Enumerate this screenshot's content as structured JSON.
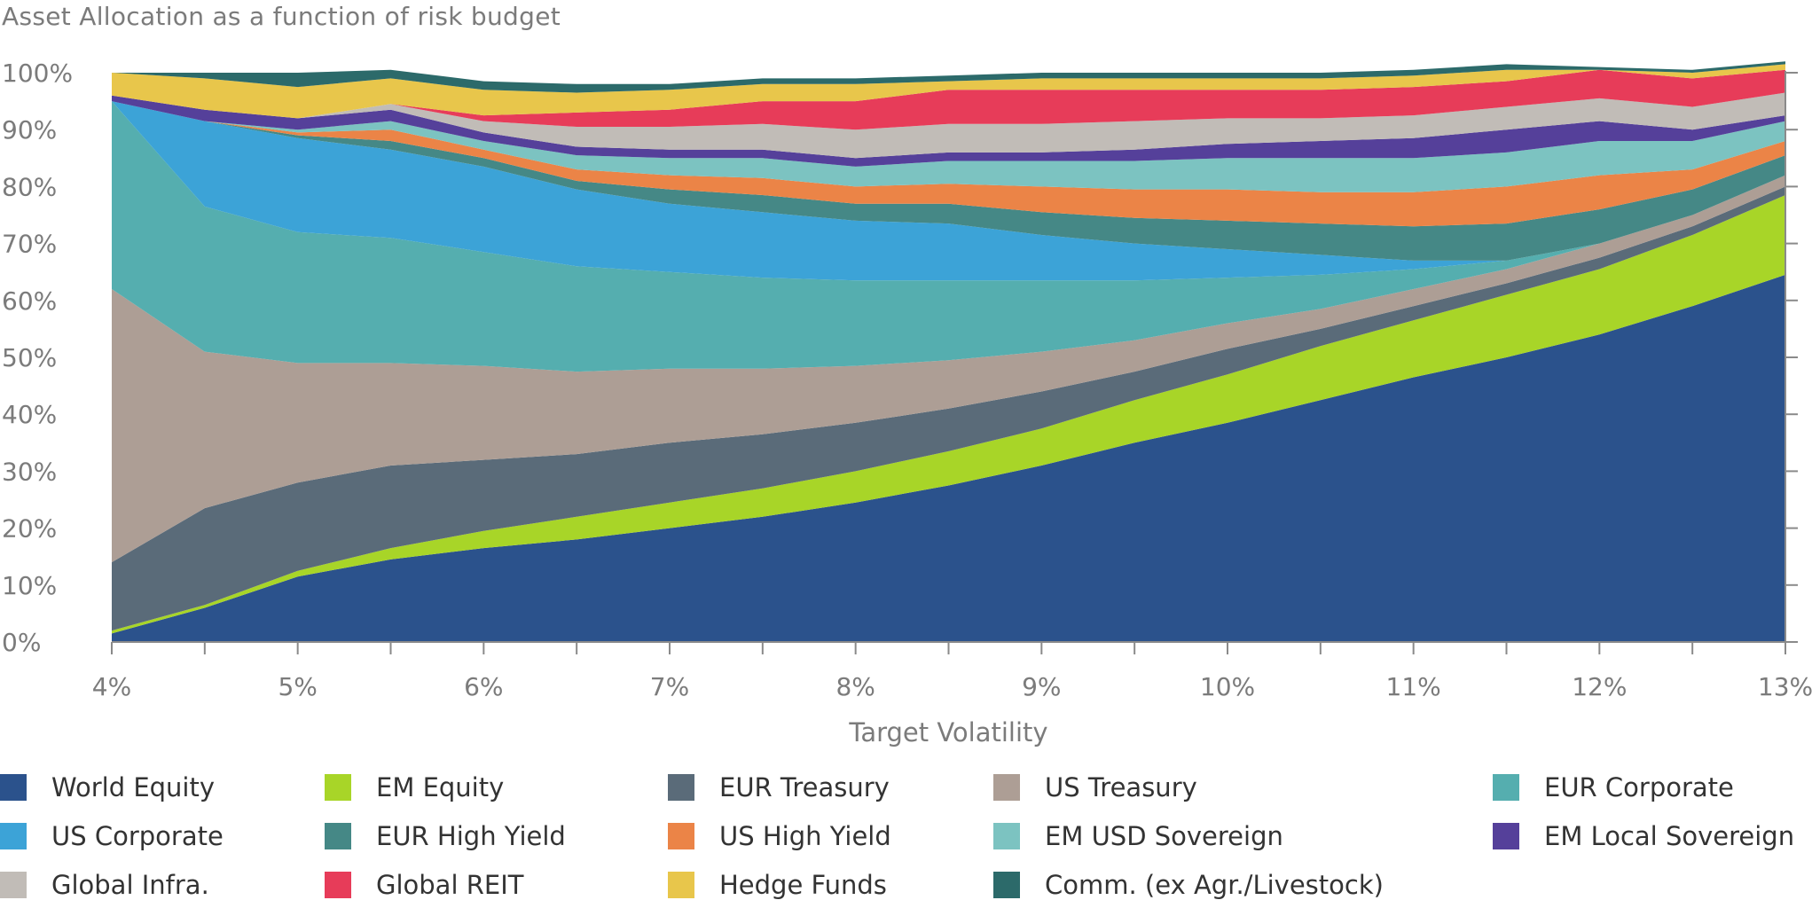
{
  "title": "Asset Allocation as a function of risk budget",
  "chart_data": {
    "type": "area",
    "stacked": true,
    "title": "Asset Allocation as a function of risk budget",
    "xlabel": "Target Volatility",
    "ylabel": "",
    "x": [
      4,
      4.5,
      5,
      5.5,
      6,
      6.5,
      7,
      7.5,
      8,
      8.5,
      9,
      9.5,
      10,
      10.5,
      11,
      11.5,
      12,
      12.5,
      13
    ],
    "xlim": [
      4,
      13
    ],
    "ylim": [
      0,
      100
    ],
    "x_tick_labels": [
      "4%",
      "5%",
      "6%",
      "7%",
      "8%",
      "9%",
      "10%",
      "11%",
      "12%",
      "13%"
    ],
    "x_tick_values": [
      4,
      5,
      6,
      7,
      8,
      9,
      10,
      11,
      12,
      13
    ],
    "y_tick_labels": [
      "0%",
      "10%",
      "20%",
      "30%",
      "40%",
      "50%",
      "60%",
      "70%",
      "80%",
      "90%",
      "100%"
    ],
    "y_tick_values": [
      0,
      10,
      20,
      30,
      40,
      50,
      60,
      70,
      80,
      90,
      100
    ],
    "grid": false,
    "legend_position": "bottom",
    "series": [
      {
        "name": "World Equity",
        "color": "#2b528c",
        "values": [
          1.5,
          6,
          11.5,
          14.5,
          16.5,
          18,
          20,
          22,
          24.5,
          27.5,
          31,
          35,
          38.5,
          42.5,
          46.5,
          50,
          54,
          59,
          64.5
        ]
      },
      {
        "name": "EM Equity",
        "color": "#a8d528",
        "values": [
          0.5,
          0.5,
          1,
          2,
          3,
          4,
          4.5,
          5,
          5.5,
          6,
          6.5,
          7.5,
          8.5,
          9.5,
          10,
          11,
          11.5,
          12.5,
          14
        ]
      },
      {
        "name": "EUR Treasury",
        "color": "#5a6b79",
        "values": [
          12,
          17,
          15.5,
          14.5,
          12.5,
          11,
          10.5,
          9.5,
          8.5,
          7.5,
          6.5,
          5,
          4.5,
          3,
          2.5,
          2,
          2,
          1.5,
          1.5
        ]
      },
      {
        "name": "US Treasury",
        "color": "#ad9e95",
        "values": [
          48,
          27.5,
          21,
          18,
          16.5,
          14.5,
          13,
          11.5,
          10,
          8.5,
          7,
          5.5,
          4.5,
          3.5,
          3,
          2.5,
          2.5,
          2,
          2
        ]
      },
      {
        "name": "EUR Corporate",
        "color": "#55aeaf",
        "values": [
          33,
          25.5,
          23,
          22,
          20,
          18.5,
          17,
          16,
          15,
          14,
          12.5,
          10.5,
          8,
          6,
          3.5,
          1.5,
          0,
          0,
          0
        ]
      },
      {
        "name": "US Corporate",
        "color": "#3ca3d7",
        "values": [
          0,
          15,
          16.5,
          15.5,
          15,
          13.5,
          12,
          11.5,
          10.5,
          10,
          8,
          6.5,
          5,
          3.5,
          1.5,
          0,
          0,
          0,
          0
        ]
      },
      {
        "name": "EUR High Yield",
        "color": "#458886",
        "values": [
          0,
          0,
          0.5,
          1.5,
          1.5,
          1.5,
          2.5,
          3,
          3,
          3.5,
          4,
          4.5,
          5,
          5.5,
          6,
          6.5,
          6,
          4.5,
          3.5
        ]
      },
      {
        "name": "US High Yield",
        "color": "#eb8447",
        "values": [
          0,
          0,
          0.5,
          2,
          1.5,
          2,
          2.5,
          3,
          3,
          3.5,
          4.5,
          5,
          5.5,
          5.5,
          6,
          6.5,
          6,
          3.5,
          2.5
        ]
      },
      {
        "name": "EM USD Sovereign",
        "color": "#7cc3c1",
        "values": [
          0,
          0,
          0.5,
          1.5,
          1.5,
          2.5,
          3,
          3.5,
          3.5,
          4,
          4.5,
          5,
          5.5,
          6,
          6,
          6,
          6,
          5,
          3.5
        ]
      },
      {
        "name": "EM Local Sovereign",
        "color": "#55409a",
        "values": [
          1,
          2,
          2,
          2,
          1.5,
          1.5,
          1.5,
          1.5,
          1.5,
          1.5,
          1.5,
          2,
          2.5,
          3,
          3.5,
          4,
          3.5,
          2,
          1
        ]
      },
      {
        "name": "Global Infra.",
        "color": "#c1bcb7",
        "values": [
          0,
          0,
          0,
          1,
          2,
          3.5,
          4,
          4.5,
          5,
          5,
          5,
          5,
          4.5,
          4,
          4,
          4,
          4,
          4,
          4
        ]
      },
      {
        "name": "Global REIT",
        "color": "#e73c59",
        "values": [
          0,
          0,
          0,
          0,
          1,
          2.5,
          3,
          4,
          5,
          6,
          6,
          5.5,
          5,
          5,
          5,
          4.5,
          5,
          5,
          4
        ]
      },
      {
        "name": "Hedge Funds",
        "color": "#e8c64b",
        "values": [
          4,
          5.5,
          5.5,
          4.5,
          4.5,
          3.5,
          3.5,
          3,
          3,
          1.5,
          2,
          2,
          2,
          2,
          2,
          2,
          0,
          1,
          1
        ]
      },
      {
        "name": "Comm. (ex Agr./Livestock)",
        "color": "#2c6a6a",
        "values": [
          0,
          1,
          2.5,
          1.5,
          1.5,
          1.5,
          1,
          1,
          1,
          1,
          1,
          1,
          1,
          1,
          1,
          1,
          0.5,
          0.5,
          0.5
        ]
      }
    ]
  },
  "legend_layout": [
    [
      0,
      1,
      2,
      3,
      4
    ],
    [
      5,
      6,
      7,
      8,
      9
    ],
    [
      10,
      11,
      12,
      13
    ]
  ]
}
